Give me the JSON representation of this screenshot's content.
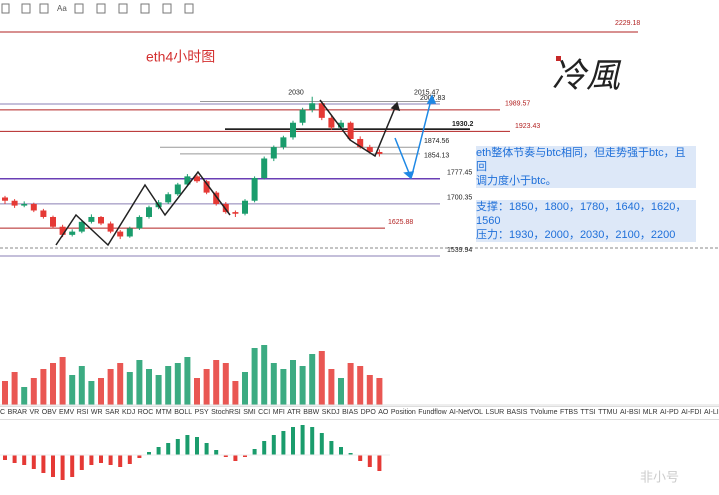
{
  "title": "eth4小时图",
  "toolbar_text": "Aa",
  "signature": "冷風",
  "watermark": "非小号",
  "peak": 2030,
  "levels": [
    {
      "value": 2229.18,
      "color": "#b22222"
    },
    {
      "value": 2015.47,
      "color": "#999999"
    },
    {
      "value": 2007.83,
      "color": "#8a7fb5"
    },
    {
      "value": 1989.57,
      "color": "#b22222"
    },
    {
      "value": 1930.2,
      "color": "#000000"
    },
    {
      "value": 1923.43,
      "color": "#b22222"
    },
    {
      "value": 1874.56,
      "color": "#999999"
    },
    {
      "value": 1854.13,
      "color": "#999999"
    },
    {
      "value": 1777.45,
      "color": "#6a3fb5"
    },
    {
      "value": 1700.35,
      "color": "#8a7fb5"
    },
    {
      "value": 1625.88,
      "color": "#b22222"
    },
    {
      "value": 1539.94,
      "color": "#8a7fb5"
    }
  ],
  "note": {
    "lines": [
      "eth整体节奏与btc相同，但走势强于btc，且回",
      "调力度小于btc。"
    ]
  },
  "support": "支撑：1850，1800，1780，1640，1620，1560",
  "resistance": "压力：1930，2000，2030，2100，2200",
  "up_color": "#1a9c6c",
  "down_color": "#e53935",
  "candles": [
    [
      1720,
      1725,
      1700,
      1710
    ],
    [
      1710,
      1715,
      1688,
      1695
    ],
    [
      1695,
      1708,
      1690,
      1700
    ],
    [
      1700,
      1704,
      1675,
      1680
    ],
    [
      1680,
      1685,
      1655,
      1660
    ],
    [
      1660,
      1664,
      1625,
      1630
    ],
    [
      1630,
      1636,
      1598,
      1605
    ],
    [
      1605,
      1622,
      1600,
      1615
    ],
    [
      1615,
      1650,
      1610,
      1645
    ],
    [
      1645,
      1668,
      1640,
      1660
    ],
    [
      1660,
      1663,
      1635,
      1640
    ],
    [
      1640,
      1646,
      1610,
      1615
    ],
    [
      1615,
      1620,
      1592,
      1600
    ],
    [
      1600,
      1630,
      1596,
      1625
    ],
    [
      1625,
      1665,
      1620,
      1660
    ],
    [
      1660,
      1695,
      1655,
      1690
    ],
    [
      1690,
      1712,
      1684,
      1705
    ],
    [
      1705,
      1736,
      1700,
      1730
    ],
    [
      1730,
      1765,
      1725,
      1760
    ],
    [
      1760,
      1792,
      1755,
      1785
    ],
    [
      1785,
      1790,
      1765,
      1770
    ],
    [
      1770,
      1774,
      1730,
      1735
    ],
    [
      1735,
      1740,
      1695,
      1700
    ],
    [
      1700,
      1706,
      1670,
      1675
    ],
    [
      1675,
      1680,
      1660,
      1670
    ],
    [
      1670,
      1715,
      1665,
      1710
    ],
    [
      1710,
      1785,
      1705,
      1780
    ],
    [
      1780,
      1846,
      1775,
      1840
    ],
    [
      1840,
      1880,
      1832,
      1875
    ],
    [
      1875,
      1910,
      1868,
      1905
    ],
    [
      1905,
      1956,
      1898,
      1950
    ],
    [
      1950,
      1996,
      1942,
      1990
    ],
    [
      1990,
      2030,
      1982,
      2010
    ],
    [
      2010,
      2015,
      1958,
      1965
    ],
    [
      1965,
      1972,
      1928,
      1935
    ],
    [
      1935,
      1958,
      1930,
      1950
    ],
    [
      1950,
      1954,
      1895,
      1900
    ],
    [
      1900,
      1908,
      1870,
      1875
    ],
    [
      1875,
      1882,
      1855,
      1860
    ],
    [
      1860,
      1868,
      1846,
      1854
    ]
  ],
  "volume": [
    40,
    55,
    30,
    45,
    60,
    70,
    80,
    50,
    65,
    40,
    45,
    60,
    70,
    55,
    75,
    60,
    50,
    65,
    70,
    80,
    45,
    60,
    75,
    70,
    40,
    55,
    95,
    100,
    70,
    60,
    75,
    65,
    85,
    90,
    60,
    45,
    70,
    65,
    50,
    45
  ],
  "macd": [
    -5,
    -8,
    -10,
    -14,
    -18,
    -22,
    -25,
    -22,
    -15,
    -10,
    -8,
    -10,
    -12,
    -9,
    -3,
    3,
    8,
    12,
    16,
    20,
    18,
    12,
    5,
    -2,
    -6,
    -2,
    6,
    14,
    20,
    24,
    28,
    30,
    28,
    22,
    14,
    8,
    2,
    -6,
    -12,
    -16
  ],
  "tabs": [
    "C",
    "BRAR",
    "VR",
    "OBV",
    "EMV",
    "RSI",
    "WR",
    "SAR",
    "KDJ",
    "ROC",
    "MTM",
    "BOLL",
    "PSY",
    "StochRSI",
    "SMI",
    "CCI",
    "MFI",
    "ATR",
    "BBW",
    "SKDJ",
    "BIAS",
    "DPO",
    "AO",
    "Position",
    "Fundflow",
    "AI-NetVOL",
    "LSUR",
    "BASIS",
    "TVolume",
    "FTBS",
    "TTSI",
    "TTMU",
    "AI-BSI",
    "MLR",
    "AI-PD",
    "AI-FDI",
    "AI-LI"
  ]
}
